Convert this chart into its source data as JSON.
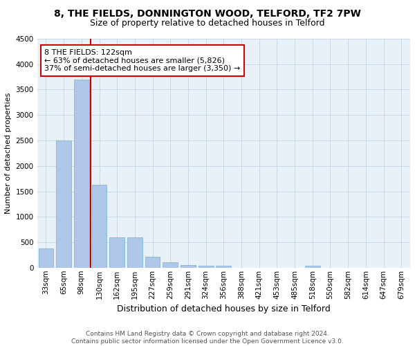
{
  "title": "8, THE FIELDS, DONNINGTON WOOD, TELFORD, TF2 7PW",
  "subtitle": "Size of property relative to detached houses in Telford",
  "xlabel": "Distribution of detached houses by size in Telford",
  "ylabel": "Number of detached properties",
  "bar_labels": [
    "33sqm",
    "65sqm",
    "98sqm",
    "130sqm",
    "162sqm",
    "195sqm",
    "227sqm",
    "259sqm",
    "291sqm",
    "324sqm",
    "356sqm",
    "388sqm",
    "421sqm",
    "453sqm",
    "485sqm",
    "518sqm",
    "550sqm",
    "582sqm",
    "614sqm",
    "647sqm",
    "679sqm"
  ],
  "bar_values": [
    375,
    2500,
    3700,
    1625,
    590,
    590,
    215,
    105,
    55,
    40,
    40,
    0,
    0,
    0,
    0,
    40,
    0,
    0,
    0,
    0,
    0
  ],
  "bar_color": "#aec6e8",
  "bar_edge_color": "#7aafd4",
  "vline_x": 2.5,
  "annotation_title": "8 THE FIELDS: 122sqm",
  "annotation_line1": "← 63% of detached houses are smaller (5,826)",
  "annotation_line2": "37% of semi-detached houses are larger (3,350) →",
  "vline_color": "#cc0000",
  "annotation_box_color": "#cc0000",
  "ylim": [
    0,
    4500
  ],
  "yticks": [
    0,
    500,
    1000,
    1500,
    2000,
    2500,
    3000,
    3500,
    4000,
    4500
  ],
  "footer1": "Contains HM Land Registry data © Crown copyright and database right 2024.",
  "footer2": "Contains public sector information licensed under the Open Government Licence v3.0.",
  "bg_color": "#ffffff",
  "plot_bg_color": "#e8f0f8",
  "grid_color": "#c8d8e8",
  "title_fontsize": 10,
  "subtitle_fontsize": 9,
  "xlabel_fontsize": 9,
  "ylabel_fontsize": 8,
  "tick_fontsize": 7.5,
  "footer_fontsize": 6.5,
  "annotation_fontsize": 8
}
